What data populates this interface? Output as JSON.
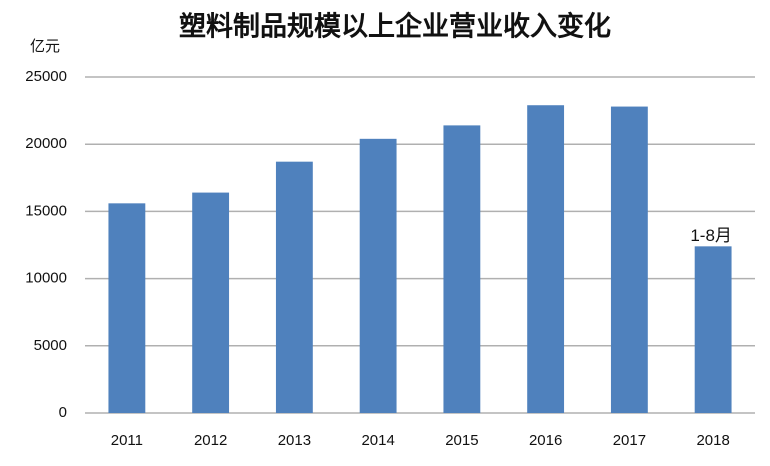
{
  "chart_data": {
    "type": "bar",
    "title": "塑料制品规模以上企业营业收入变化",
    "y_label": "亿元",
    "categories": [
      "2011",
      "2012",
      "2013",
      "2014",
      "2015",
      "2016",
      "2017",
      "2018"
    ],
    "values": [
      15600,
      16400,
      18700,
      20400,
      21400,
      22900,
      22800,
      12400
    ],
    "color": "#4f81bd",
    "annotation": "1-8月",
    "ylim": [
      0,
      25000
    ],
    "yticks": [
      0,
      5000,
      10000,
      15000,
      20000,
      25000
    ],
    "grid": true
  }
}
